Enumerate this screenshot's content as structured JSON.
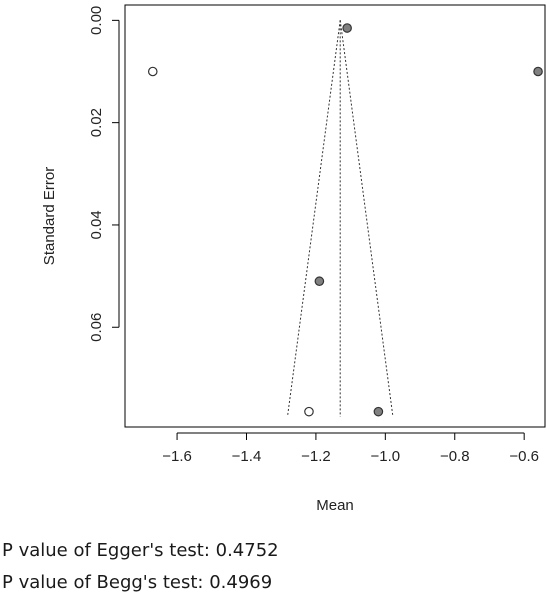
{
  "chart_data": {
    "type": "scatter",
    "title": "",
    "xlabel": "Mean",
    "ylabel": "Standard Error",
    "xlim": [
      -1.75,
      -0.54
    ],
    "ylim": [
      -0.003,
      0.0795
    ],
    "y_reversed": true,
    "x_ticks": [
      -1.6,
      -1.4,
      -1.2,
      -1.0,
      -0.8,
      -0.6
    ],
    "x_tick_labels": [
      "−1.6",
      "−1.4",
      "−1.2",
      "−1.0",
      "−0.8",
      "−0.6"
    ],
    "y_ticks": [
      0.0,
      0.02,
      0.04,
      0.06
    ],
    "y_tick_labels": [
      "0.00",
      "0.02",
      "0.04",
      "0.06"
    ],
    "pooled_mean": -1.13,
    "funnel_max_se": 0.0775,
    "series": [
      {
        "style": "observed",
        "color": "#808080",
        "points": [
          {
            "x": -1.11,
            "y": 0.0015
          },
          {
            "x": -0.56,
            "y": 0.01
          },
          {
            "x": -1.19,
            "y": 0.051
          },
          {
            "x": -1.02,
            "y": 0.0765
          }
        ]
      },
      {
        "style": "imputed",
        "color": "#ffffff",
        "points": [
          {
            "x": -1.67,
            "y": 0.01
          },
          {
            "x": -1.22,
            "y": 0.0765
          }
        ]
      }
    ],
    "grid": false,
    "legend": "none"
  },
  "tests": {
    "egger": "P value of Egger's test: 0.4752",
    "begg": "P value of Begg's test: 0.4969"
  }
}
